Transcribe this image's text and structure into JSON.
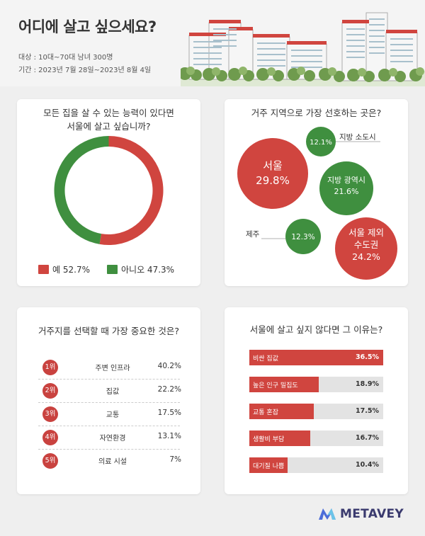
{
  "header": {
    "title": "어디에 살고 싶으세요?",
    "target": "대상 : 10대~70대 남녀 300명",
    "period": "기간 : 2023년 7월 28일~2023년 8월 4일"
  },
  "colors": {
    "red": "#d0453f",
    "green": "#3f8f3f",
    "track": "#e3e3e3"
  },
  "chart_data": [
    {
      "type": "pie",
      "title": "모든 집을 살 수 있는 능력이 있다면 서울에 살고 싶습니까?",
      "title_lines": [
        "모든 집을 살 수 있는 능력이 있다면",
        "서울에 살고 싶습니까?"
      ],
      "labels": [
        "예",
        "아니오"
      ],
      "values": [
        52.7,
        47.3
      ],
      "legend_text": [
        "예 52.7%",
        "아니오 47.3%"
      ],
      "legend": "bottom"
    },
    {
      "type": "scatter",
      "title": "거주 지역으로 가장 선호하는 곳은?",
      "labels": [
        "서울",
        "서울 제외 수도권",
        "제주",
        "지방 광역시",
        "지방 소도시"
      ],
      "values": [
        29.8,
        24.2,
        12.3,
        21.6,
        12.1
      ],
      "value_text": [
        "29.8%",
        "24.2%",
        "12.3%",
        "21.6%",
        "12.1%"
      ],
      "label_lines": {
        "capital_area": [
          "서울 제외",
          "수도권"
        ]
      }
    },
    {
      "type": "table",
      "title": "거주지를 선택할 때 가장 중요한 것은?",
      "ranks": [
        "1위",
        "2위",
        "3위",
        "4위",
        "5위"
      ],
      "labels": [
        "주변 인프라",
        "집값",
        "교통",
        "자연환경",
        "의료 시설"
      ],
      "values": [
        40.2,
        22.2,
        17.5,
        13.1,
        7
      ],
      "value_text": [
        "40.2%",
        "22.2%",
        "17.5%",
        "13.1%",
        "7%"
      ]
    },
    {
      "type": "bar",
      "title": "서울에 살고 싶지 않다면 그 이유는?",
      "categories": [
        "비싼 집값",
        "높은 인구 밀집도",
        "교통 혼잡",
        "생활비 부담",
        "대기질 나쁨"
      ],
      "values": [
        36.5,
        18.9,
        17.5,
        16.7,
        10.4
      ],
      "value_text": [
        "36.5%",
        "18.9%",
        "17.5%",
        "16.7%",
        "10.4%"
      ],
      "orientation": "horizontal",
      "xlim": [
        0,
        36.5
      ]
    }
  ],
  "brand": {
    "name": "METAVEY",
    "logo_icon": "metavey-logo-icon"
  }
}
